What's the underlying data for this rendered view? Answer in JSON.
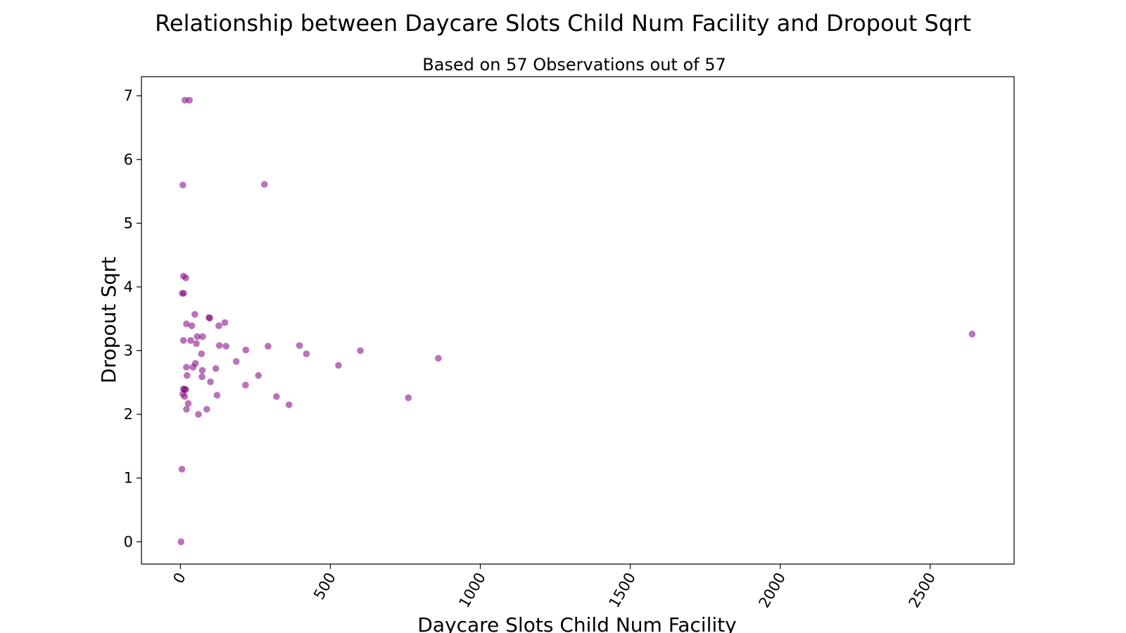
{
  "chart_data": {
    "type": "scatter",
    "title": "Relationship between Daycare Slots Child Num Facility and Dropout Sqrt",
    "subtitle": "Based on 57 Observations out of 57",
    "xlabel": "Daycare Slots Child Num Facility",
    "ylabel": "Dropout Sqrt",
    "xlim": [
      -130,
      2780
    ],
    "ylim": [
      -0.35,
      7.3
    ],
    "xticks": [
      0,
      500,
      1000,
      1500,
      2000,
      2500
    ],
    "yticks": [
      0,
      1,
      2,
      3,
      4,
      5,
      6,
      7
    ],
    "xtick_rotation": -60,
    "grid": false,
    "legend": "none",
    "marker_color": "#800080",
    "marker_alpha": 0.55,
    "points": [
      {
        "x": 15,
        "y": 6.93
      },
      {
        "x": 30,
        "y": 6.93
      },
      {
        "x": 8,
        "y": 5.6
      },
      {
        "x": 280,
        "y": 5.61
      },
      {
        "x": 10,
        "y": 4.17
      },
      {
        "x": 18,
        "y": 4.14
      },
      {
        "x": 6,
        "y": 3.9
      },
      {
        "x": 11,
        "y": 3.9
      },
      {
        "x": 95,
        "y": 3.52
      },
      {
        "x": 98,
        "y": 3.51
      },
      {
        "x": 48,
        "y": 3.57
      },
      {
        "x": 148,
        "y": 3.44
      },
      {
        "x": 20,
        "y": 3.42
      },
      {
        "x": 38,
        "y": 3.39
      },
      {
        "x": 128,
        "y": 3.39
      },
      {
        "x": 56,
        "y": 3.22
      },
      {
        "x": 74,
        "y": 3.22
      },
      {
        "x": 10,
        "y": 3.16
      },
      {
        "x": 34,
        "y": 3.16
      },
      {
        "x": 53,
        "y": 3.11
      },
      {
        "x": 130,
        "y": 3.08
      },
      {
        "x": 152,
        "y": 3.07
      },
      {
        "x": 292,
        "y": 3.07
      },
      {
        "x": 397,
        "y": 3.08
      },
      {
        "x": 218,
        "y": 3.01
      },
      {
        "x": 600,
        "y": 3.0
      },
      {
        "x": 70,
        "y": 2.95
      },
      {
        "x": 420,
        "y": 2.95
      },
      {
        "x": 2640,
        "y": 3.26
      },
      {
        "x": 860,
        "y": 2.88
      },
      {
        "x": 186,
        "y": 2.83
      },
      {
        "x": 50,
        "y": 2.8
      },
      {
        "x": 527,
        "y": 2.77
      },
      {
        "x": 20,
        "y": 2.74
      },
      {
        "x": 42,
        "y": 2.74
      },
      {
        "x": 118,
        "y": 2.72
      },
      {
        "x": 73,
        "y": 2.69
      },
      {
        "x": 22,
        "y": 2.61
      },
      {
        "x": 72,
        "y": 2.59
      },
      {
        "x": 260,
        "y": 2.61
      },
      {
        "x": 100,
        "y": 2.51
      },
      {
        "x": 217,
        "y": 2.46
      },
      {
        "x": 10,
        "y": 2.4
      },
      {
        "x": 14,
        "y": 2.39
      },
      {
        "x": 18,
        "y": 2.39
      },
      {
        "x": 8,
        "y": 2.32
      },
      {
        "x": 14,
        "y": 2.28
      },
      {
        "x": 122,
        "y": 2.3
      },
      {
        "x": 320,
        "y": 2.28
      },
      {
        "x": 760,
        "y": 2.26
      },
      {
        "x": 26,
        "y": 2.17
      },
      {
        "x": 362,
        "y": 2.15
      },
      {
        "x": 20,
        "y": 2.08
      },
      {
        "x": 88,
        "y": 2.08
      },
      {
        "x": 60,
        "y": 2.0
      },
      {
        "x": 5,
        "y": 1.14
      },
      {
        "x": 2,
        "y": 0.0
      }
    ]
  }
}
